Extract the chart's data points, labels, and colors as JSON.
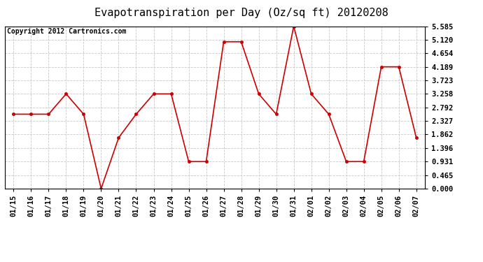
{
  "title": "Evapotranspiration per Day (Oz/sq ft) 20120208",
  "copyright_text": "Copyright 2012 Cartronics.com",
  "x_labels": [
    "01/15",
    "01/16",
    "01/17",
    "01/18",
    "01/19",
    "01/20",
    "01/21",
    "01/22",
    "01/23",
    "01/24",
    "01/25",
    "01/26",
    "01/27",
    "01/28",
    "01/29",
    "01/30",
    "01/31",
    "02/01",
    "02/02",
    "02/03",
    "02/04",
    "02/05",
    "02/06",
    "02/07"
  ],
  "y_values": [
    2.56,
    2.56,
    2.56,
    3.258,
    2.56,
    0.0,
    1.75,
    2.56,
    3.258,
    3.258,
    0.931,
    0.931,
    5.05,
    5.05,
    3.258,
    2.56,
    5.585,
    3.258,
    2.56,
    0.931,
    0.931,
    4.189,
    4.189,
    1.75
  ],
  "line_color": "#cc0000",
  "marker": "o",
  "marker_size": 3,
  "background_color": "#ffffff",
  "grid_color": "#c8c8c8",
  "y_ticks": [
    0.0,
    0.465,
    0.931,
    1.396,
    1.862,
    2.327,
    2.792,
    3.258,
    3.723,
    4.189,
    4.654,
    5.12,
    5.585
  ],
  "ylim": [
    0.0,
    5.585
  ],
  "title_fontsize": 11,
  "copyright_fontsize": 7,
  "tick_fontsize": 7.5
}
